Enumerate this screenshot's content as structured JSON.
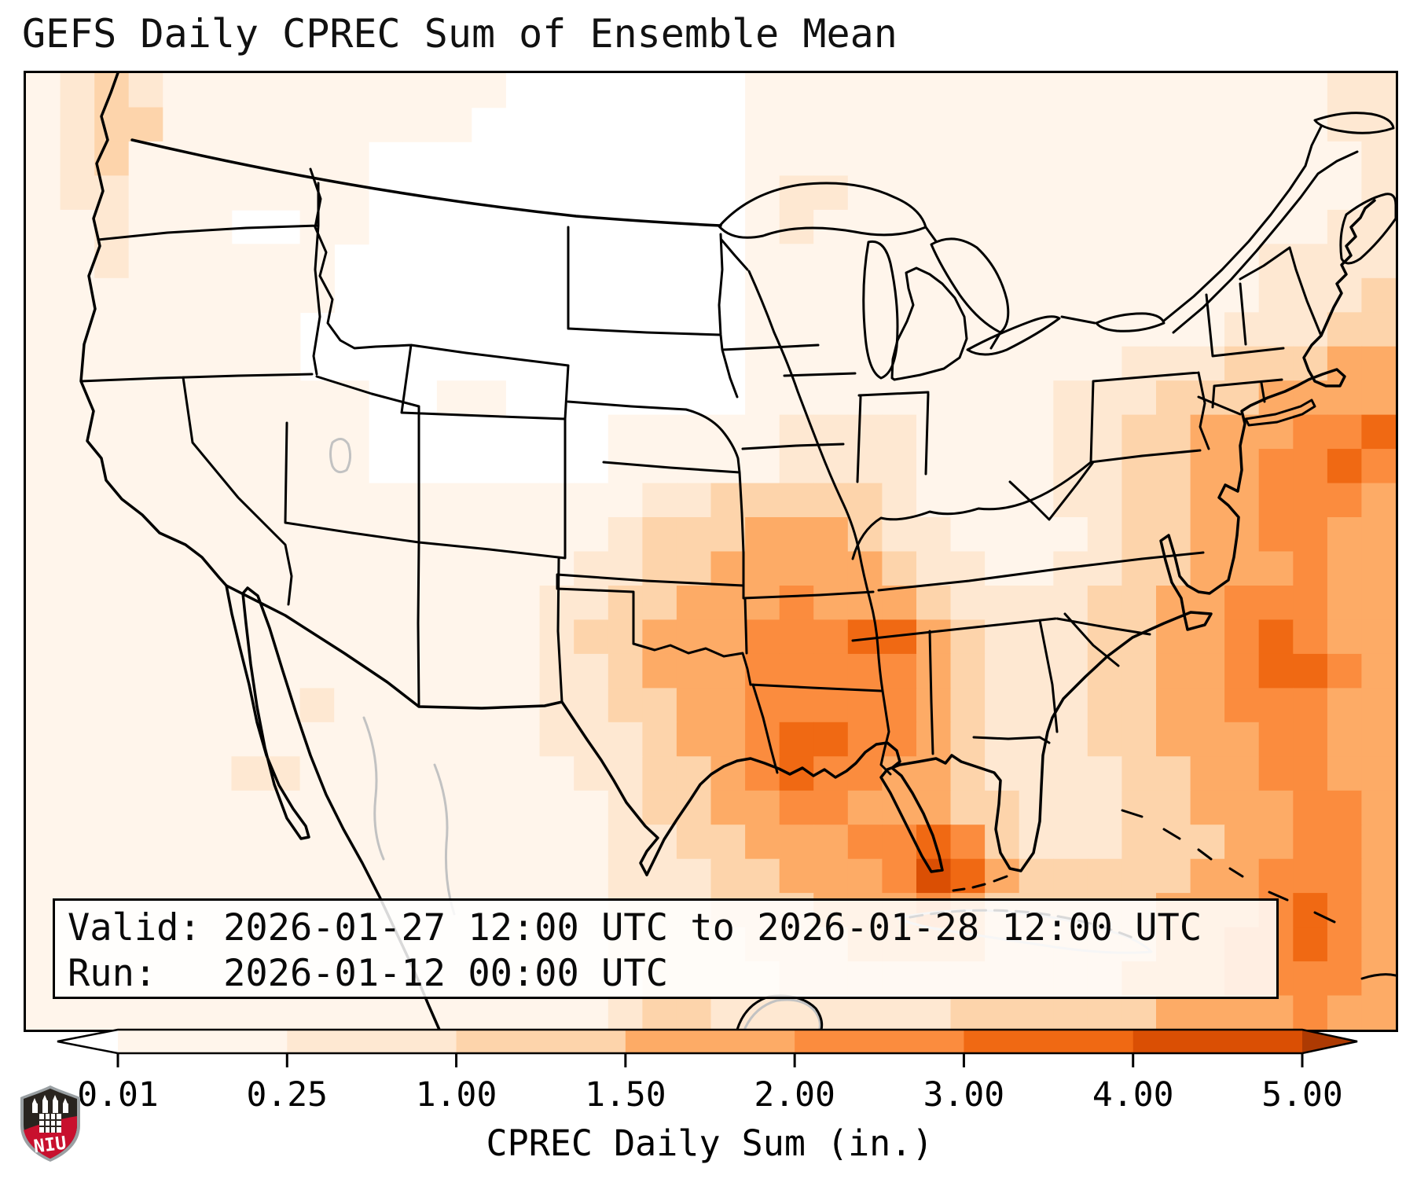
{
  "title": "GEFS Daily CPREC Sum of Ensemble Mean",
  "info_box": {
    "valid_line": "Valid: 2026-01-27 12:00 UTC to 2026-01-28 12:00 UTC",
    "run_line": "Run:   2026-01-12 00:00 UTC"
  },
  "colorbar": {
    "label": "CPREC Daily Sum (in.)",
    "tick_labels": [
      "0.01",
      "0.25",
      "1.00",
      "1.50",
      "2.00",
      "3.00",
      "4.00",
      "5.00"
    ],
    "segment_colors": [
      "#fff5eb",
      "#fee8d2",
      "#fdd4ab",
      "#fdab66",
      "#fb8c3e",
      "#f06913",
      "#da4f04"
    ],
    "under_color": "#ffffff",
    "over_color": "#ad3a03",
    "outline_color": "#000000"
  },
  "logo": {
    "text": "NIU",
    "shield_dark": "#29241f",
    "shield_red": "#c8102e",
    "shield_border": "#9aa0a3"
  },
  "chart_data": {
    "type": "heatmap",
    "title": "GEFS Daily CPREC Sum of Ensemble Mean",
    "colorbar_label": "CPREC Daily Sum (in.)",
    "levels_in": [
      0.01,
      0.25,
      1.0,
      1.5,
      2.0,
      3.0,
      4.0,
      5.0
    ],
    "extend": "both",
    "valid": "2026-01-27 12:00 UTC to 2026-01-28 12:00 UTC",
    "run": "2026-01-12 00:00 UTC",
    "region": "CONUS",
    "grid_cols": 40,
    "grid_rows": 28,
    "palette": [
      "#ffffff",
      "#fff5eb",
      "#fee8d2",
      "#fdd4ab",
      "#fdab66",
      "#fb8c3e",
      "#f06913",
      "#da4f04"
    ],
    "grid_levels": [
      "1232111111111100000001111111111111111122",
      "1233111111111000000001111111111111111122",
      "1231111111000000000001111111111111111112",
      "1221111111000000000001221111111111111112",
      "1121110011000000000001211111111111111122",
      "1121111110000000000001111111111111112222",
      "1111111110000000000001111111111111112223",
      "1111111100000000000001111111111111122233",
      "1111111100000000000001111111111122233344",
      "1111111111001100000001111111112223334444",
      "1111111111000000011111222211112233444556",
      "1111111111000000011111222211112233445565",
      "1111111111111111112233333211112233445554",
      "1111111111111111123334443221111233445544",
      "1111111111111111223344444322112233444544",
      "1111111111111112233444544432222334455544",
      "1111111111111112334445556643222334456544",
      "1111111111111112234445555543222334456654",
      "1111111121111112233445555543222334455544",
      "1111111111111112223445665543222334445544",
      "1111112211111111223345655443222233445544",
      "1111111111111111123344554443322233444554",
      "1111111111111111122334445565322233344554",
      "1111111111111111122233444576433333445554",
      "1111111111111111122233344454333334445654",
      "1111111111111111122223334444333334455654",
      "1111111111111111112222333333333344455554",
      "1111111111111111123322222223333334444544"
    ]
  }
}
